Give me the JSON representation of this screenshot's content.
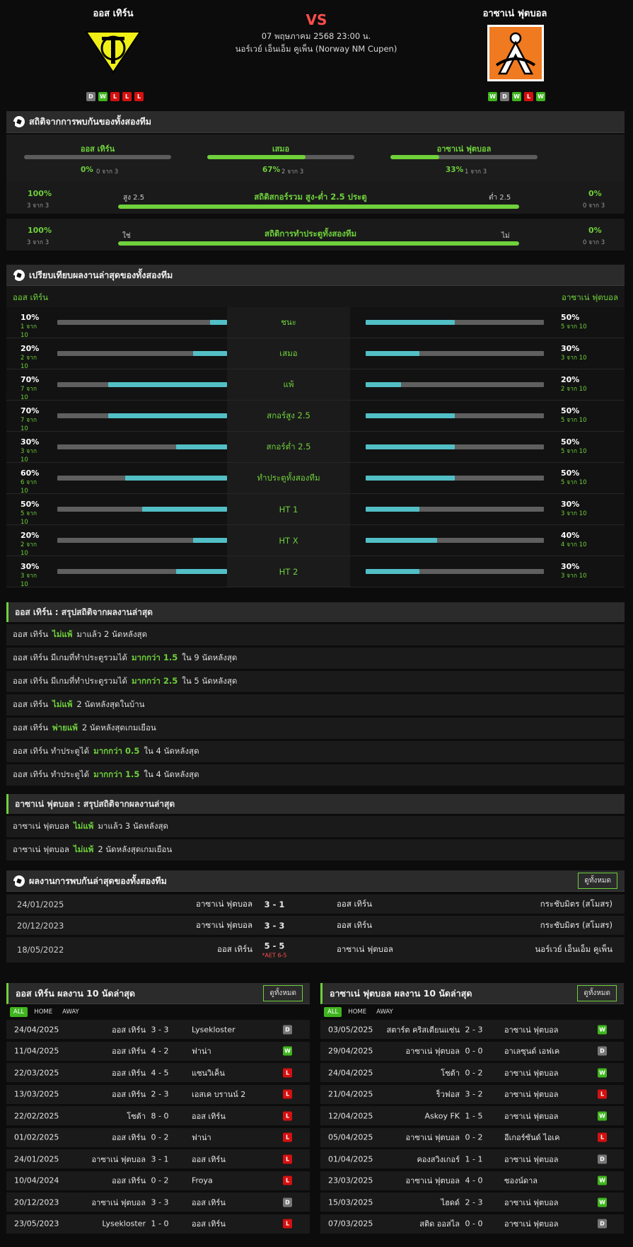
{
  "match": {
    "vs": "VS",
    "datetime": "07 พฤษภาคม 2568 23:00 น.",
    "competition": "นอร์เวย์ เอ็นเอ็ม คูเพ็น (Norway NM Cupen)",
    "home": {
      "name": "ออส เทิร์น",
      "form": [
        "D",
        "W",
        "L",
        "L",
        "L"
      ]
    },
    "away": {
      "name": "อาซาเน่ ฟุตบอล",
      "form": [
        "W",
        "D",
        "W",
        "L",
        "W"
      ]
    }
  },
  "h2h_stats": {
    "title": "สถิติจากการพบกันของทั้งสองทีม",
    "cols": [
      {
        "label": "ออส เทิร์น",
        "pct": "0%",
        "count": "0 จาก 3",
        "fill": 0
      },
      {
        "label": "เสมอ",
        "pct": "67%",
        "count": "2 จาก 3",
        "fill": 0.67
      },
      {
        "label": "อาซาเน่ ฟุตบอล",
        "pct": "33%",
        "count": "1 จาก 3",
        "fill": 0.33
      }
    ],
    "goals": {
      "title": "สถิติสกอร์รวม สูง-ต่ำ 2.5 ประตู",
      "left_pct": "100%",
      "left_count": "3 จาก 3",
      "left_label": "สูง 2.5",
      "right_pct": "0%",
      "right_count": "0 จาก 3",
      "right_label": "ต่ำ 2.5",
      "fill": 1.0
    },
    "btts": {
      "title": "สถิติการทำประตูทั้งสองทีม",
      "left_pct": "100%",
      "left_count": "3 จาก 3",
      "left_label": "ใช่",
      "right_pct": "0%",
      "right_count": "0 จาก 3",
      "right_label": "ไม่",
      "fill": 1.0
    }
  },
  "compare": {
    "title": "เปรียบเทียบผลงานล่าสุดของทั้งสองทีม",
    "home_label": "ออส เทิร์น",
    "away_label": "อาซาเน่ ฟุตบอล",
    "rows": [
      {
        "label": "ชนะ",
        "home_pct": "10%",
        "home_count": "1 จาก 10",
        "home_fill": 0.1,
        "away_pct": "50%",
        "away_count": "5 จาก 10",
        "away_fill": 0.5
      },
      {
        "label": "เสมอ",
        "home_pct": "20%",
        "home_count": "2 จาก 10",
        "home_fill": 0.2,
        "away_pct": "30%",
        "away_count": "3 จาก 10",
        "away_fill": 0.3
      },
      {
        "label": "แพ้",
        "home_pct": "70%",
        "home_count": "7 จาก 10",
        "home_fill": 0.7,
        "away_pct": "20%",
        "away_count": "2 จาก 10",
        "away_fill": 0.2
      },
      {
        "label": "สกอร์สูง 2.5",
        "home_pct": "70%",
        "home_count": "7 จาก 10",
        "home_fill": 0.7,
        "away_pct": "50%",
        "away_count": "5 จาก 10",
        "away_fill": 0.5
      },
      {
        "label": "สกอร์ต่ำ 2.5",
        "home_pct": "30%",
        "home_count": "3 จาก 10",
        "home_fill": 0.3,
        "away_pct": "50%",
        "away_count": "5 จาก 10",
        "away_fill": 0.5
      },
      {
        "label": "ทำประตูทั้งสองทีม",
        "home_pct": "60%",
        "home_count": "6 จาก 10",
        "home_fill": 0.6,
        "away_pct": "50%",
        "away_count": "5 จาก 10",
        "away_fill": 0.5
      },
      {
        "label": "HT 1",
        "home_pct": "50%",
        "home_count": "5 จาก 10",
        "home_fill": 0.5,
        "away_pct": "30%",
        "away_count": "3 จาก 10",
        "away_fill": 0.3
      },
      {
        "label": "HT X",
        "home_pct": "20%",
        "home_count": "2 จาก 10",
        "home_fill": 0.2,
        "away_pct": "40%",
        "away_count": "4 จาก 10",
        "away_fill": 0.4
      },
      {
        "label": "HT 2",
        "home_pct": "30%",
        "home_count": "3 จาก 10",
        "home_fill": 0.3,
        "away_pct": "30%",
        "away_count": "3 จาก 10",
        "away_fill": 0.3
      }
    ]
  },
  "home_summary": {
    "title": "ออส เทิร์น : สรุปสถิติจากผลงานล่าสุด",
    "rows": [
      {
        "pre": "ออส เทิร์น",
        "hl": "ไม่แพ้",
        "post": "มาแล้ว 2 นัดหลังสุด"
      },
      {
        "pre": "ออส เทิร์น มีเกมที่ทำประตูรวมได้",
        "hl": "มากกว่า 1.5",
        "post": "ใน 9 นัดหลังสุด"
      },
      {
        "pre": "ออส เทิร์น มีเกมที่ทำประตูรวมได้",
        "hl": "มากกว่า 2.5",
        "post": "ใน 5 นัดหลังสุด"
      },
      {
        "pre": "ออส เทิร์น",
        "hl": "ไม่แพ้",
        "post": "2 นัดหลังสุดในบ้าน"
      },
      {
        "pre": "ออส เทิร์น",
        "hl": "พ่ายแพ้",
        "post": "2 นัดหลังสุดเกมเยือน"
      },
      {
        "pre": "ออส เทิร์น ทำประตูได้",
        "hl": "มากกว่า 0.5",
        "post": "ใน 4 นัดหลังสุด"
      },
      {
        "pre": "ออส เทิร์น ทำประตูได้",
        "hl": "มากกว่า 1.5",
        "post": "ใน 4 นัดหลังสุด"
      }
    ]
  },
  "away_summary": {
    "title": "อาซาเน่ ฟุตบอล : สรุปสถิติจากผลงานล่าสุด",
    "rows": [
      {
        "pre": "อาซาเน่ ฟุตบอล",
        "hl": "ไม่แพ้",
        "post": "มาแล้ว 3 นัดหลังสุด"
      },
      {
        "pre": "อาซาเน่ ฟุตบอล",
        "hl": "ไม่แพ้",
        "post": "2 นัดหลังสุดเกมเยือน"
      }
    ]
  },
  "h2h_results": {
    "title": "ผลงานการพบกันล่าสุดของทั้งสองทีม",
    "view_all": "ดูทั้งหมด",
    "rows": [
      {
        "date": "24/01/2025",
        "home": "อาซาเน่ ฟุตบอล",
        "score": "3 - 1",
        "away": "ออส เทิร์น",
        "comp": "กระชับมิตร (สโมสร)",
        "note": ""
      },
      {
        "date": "20/12/2023",
        "home": "อาซาเน่ ฟุตบอล",
        "score": "3 - 3",
        "away": "ออส เทิร์น",
        "comp": "กระชับมิตร (สโมสร)",
        "note": ""
      },
      {
        "date": "18/05/2022",
        "home": "ออส เทิร์น",
        "score": "5 - 5",
        "away": "อาซาเน่ ฟุตบอล",
        "comp": "นอร์เวย์ เอ็นเอ็ม คูเพ็น",
        "note": "*AET 6-5"
      }
    ]
  },
  "home_last10": {
    "title": "ออส เทิร์น ผลงาน 10 นัดล่าสุด",
    "view_all": "ดูทั้งหมด",
    "tabs": [
      "ALL",
      "HOME",
      "AWAY"
    ],
    "rows": [
      {
        "date": "24/04/2025",
        "home": "ออส เทิร์น",
        "score": "3 - 3",
        "away": "Lysekloster",
        "res": "D"
      },
      {
        "date": "11/04/2025",
        "home": "ออส เทิร์น",
        "score": "4 - 2",
        "away": "ฟาน่า",
        "res": "W"
      },
      {
        "date": "22/03/2025",
        "home": "ออส เทิร์น",
        "score": "4 - 5",
        "away": "แซนวิเค็น",
        "res": "L"
      },
      {
        "date": "13/03/2025",
        "home": "ออส เทิร์น",
        "score": "2 - 3",
        "away": "เอสเค บรานน์ 2",
        "res": "L"
      },
      {
        "date": "22/02/2025",
        "home": "โซต้า",
        "score": "8 - 0",
        "away": "ออส เทิร์น",
        "res": "L"
      },
      {
        "date": "01/02/2025",
        "home": "ออส เทิร์น",
        "score": "0 - 2",
        "away": "ฟาน่า",
        "res": "L"
      },
      {
        "date": "24/01/2025",
        "home": "อาซาเน่ ฟุตบอล",
        "score": "3 - 1",
        "away": "ออส เทิร์น",
        "res": "L"
      },
      {
        "date": "10/04/2024",
        "home": "ออส เทิร์น",
        "score": "0 - 2",
        "away": "Froya",
        "res": "L"
      },
      {
        "date": "20/12/2023",
        "home": "อาซาเน่ ฟุตบอล",
        "score": "3 - 3",
        "away": "ออส เทิร์น",
        "res": "D"
      },
      {
        "date": "23/05/2023",
        "home": "Lysekloster",
        "score": "1 - 0",
        "away": "ออส เทิร์น",
        "res": "L"
      }
    ]
  },
  "away_last10": {
    "title": "อาซาเน่ ฟุตบอล ผลงาน 10 นัดล่าสุด",
    "view_all": "ดูทั้งหมด",
    "tabs": [
      "ALL",
      "HOME",
      "AWAY"
    ],
    "rows": [
      {
        "date": "03/05/2025",
        "home": "สตาร์ต คริสเตียนแซ่น",
        "score": "2 - 3",
        "away": "อาซาเน่ ฟุตบอล",
        "res": "W"
      },
      {
        "date": "29/04/2025",
        "home": "อาซาเน่ ฟุตบอล",
        "score": "0 - 0",
        "away": "อาเลซุนด์ เอฟเค",
        "res": "D"
      },
      {
        "date": "24/04/2025",
        "home": "โซต้า",
        "score": "0 - 2",
        "away": "อาซาเน่ ฟุตบอล",
        "res": "W"
      },
      {
        "date": "21/04/2025",
        "home": "ร็วฟอส",
        "score": "3 - 2",
        "away": "อาซาเน่ ฟุตบอล",
        "res": "L"
      },
      {
        "date": "12/04/2025",
        "home": "Askoy FK",
        "score": "1 - 5",
        "away": "อาซาเน่ ฟุตบอล",
        "res": "W"
      },
      {
        "date": "05/04/2025",
        "home": "อาซาเน่ ฟุตบอล",
        "score": "0 - 2",
        "away": "อีเกอร์ซันด์ ไอเค",
        "res": "L"
      },
      {
        "date": "01/04/2025",
        "home": "คองสวิงเกอร์",
        "score": "1 - 1",
        "away": "อาซาเน่ ฟุตบอล",
        "res": "D"
      },
      {
        "date": "23/03/2025",
        "home": "อาซาเน่ ฟุตบอล",
        "score": "4 - 0",
        "away": "ซองน์ดาล",
        "res": "W"
      },
      {
        "date": "15/03/2025",
        "home": "ไฮดด์",
        "score": "2 - 3",
        "away": "อาซาเน่ ฟุตบอล",
        "res": "W"
      },
      {
        "date": "07/03/2025",
        "home": "สติด ออสไล",
        "score": "0 - 0",
        "away": "อาซาเน่ ฟุตบอล",
        "res": "D"
      }
    ]
  }
}
